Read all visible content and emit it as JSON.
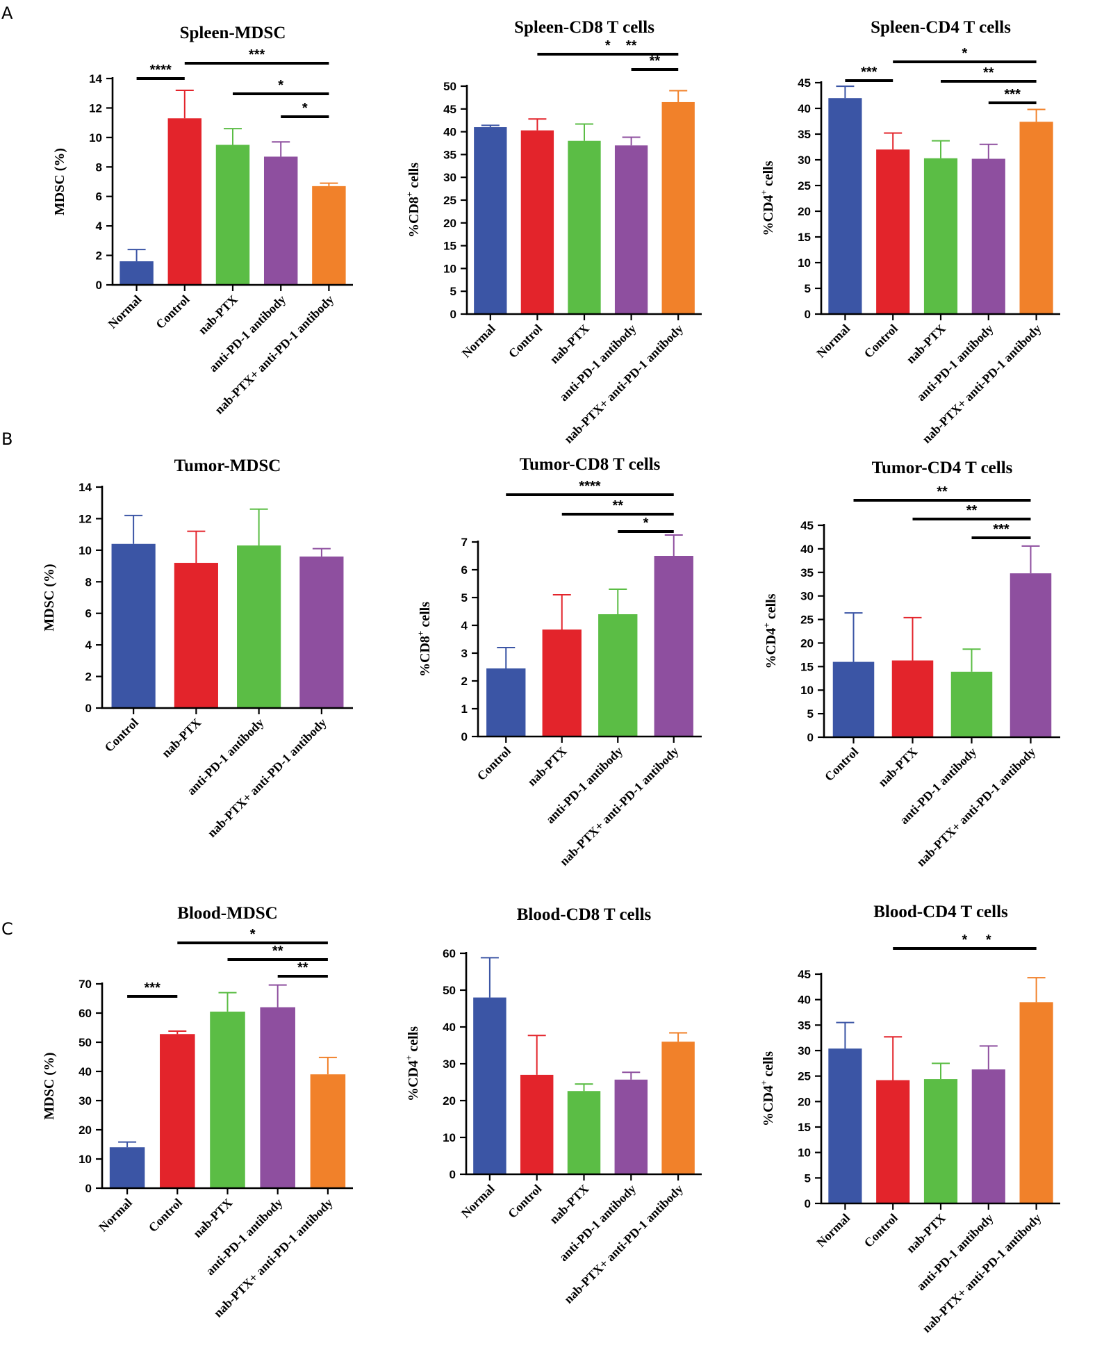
{
  "panels": [
    {
      "label": "A"
    },
    {
      "label": "B"
    },
    {
      "label": "C"
    }
  ],
  "colors": {
    "Normal": "#3b55a5",
    "Control": "#e3242b",
    "nab-PTX": "#5bbd45",
    "anti-PD-1 antibody": "#8e4f9f",
    "nab-PTX+ anti-PD-1 antibody": "#f1812a",
    "axis": "#000000"
  },
  "chart_data": [
    {
      "id": "spleen-mdsc",
      "type": "bar",
      "title": "Spleen-MDSC",
      "ylabel": "MDSC (%)",
      "categories": [
        "Normal",
        "Control",
        "nab-PTX",
        "anti-PD-1 antibody",
        "nab-PTX+ anti-PD-1 antibody"
      ],
      "color_keys": [
        "Normal",
        "Control",
        "nab-PTX",
        "anti-PD-1 antibody",
        "nab-PTX+ anti-PD-1 antibody"
      ],
      "values": [
        1.6,
        11.3,
        9.5,
        8.7,
        6.7
      ],
      "errors": [
        0.8,
        1.9,
        1.1,
        1.0,
        0.2
      ],
      "ylim": [
        0,
        14
      ],
      "yticks": [
        0,
        2,
        4,
        6,
        8,
        10,
        12,
        14
      ],
      "significance": [
        {
          "from": 0,
          "to": 1,
          "label": "****"
        },
        {
          "from": 1,
          "to": 4,
          "label": "***"
        },
        {
          "from": 2,
          "to": 4,
          "label": "*"
        },
        {
          "from": 3,
          "to": 4,
          "label": "*"
        }
      ]
    },
    {
      "id": "spleen-cd8",
      "type": "bar",
      "title": "Spleen-CD8 T cells",
      "ylabel": "%CD8",
      "ylabel_sup": "+",
      "ylabel_suffix": " cells",
      "categories": [
        "Normal",
        "Control",
        "nab-PTX",
        "anti-PD-1 antibody",
        "nab-PTX+ anti-PD-1 antibody"
      ],
      "color_keys": [
        "Normal",
        "Control",
        "nab-PTX",
        "anti-PD-1 antibody",
        "nab-PTX+ anti-PD-1 antibody"
      ],
      "values": [
        41.0,
        40.3,
        38.0,
        37.0,
        46.5
      ],
      "errors": [
        0.4,
        2.5,
        3.7,
        1.8,
        2.5
      ],
      "ylim": [
        0,
        50
      ],
      "yticks": [
        0,
        5,
        10,
        15,
        20,
        25,
        30,
        35,
        40,
        45,
        50
      ],
      "significance": [
        {
          "from": 1,
          "to": 4,
          "label": "*"
        },
        {
          "from": 2,
          "to": 4,
          "label": "**"
        },
        {
          "from": 3,
          "to": 4,
          "label": "**"
        }
      ]
    },
    {
      "id": "spleen-cd4",
      "type": "bar",
      "title": "Spleen-CD4 T cells",
      "ylabel": "%CD4",
      "ylabel_sup": "+",
      "ylabel_suffix": " cells",
      "categories": [
        "Normal",
        "Control",
        "nab-PTX",
        "anti-PD-1 antibody",
        "nab-PTX+ anti-PD-1 antibody"
      ],
      "color_keys": [
        "Normal",
        "Control",
        "nab-PTX",
        "anti-PD-1 antibody",
        "nab-PTX+ anti-PD-1 antibody"
      ],
      "values": [
        42.0,
        32.0,
        30.3,
        30.2,
        37.4
      ],
      "errors": [
        2.3,
        3.2,
        3.4,
        2.8,
        2.4
      ],
      "ylim": [
        0,
        45
      ],
      "yticks": [
        0,
        5,
        10,
        15,
        20,
        25,
        30,
        35,
        40,
        45
      ],
      "significance": [
        {
          "from": 0,
          "to": 1,
          "label": "***"
        },
        {
          "from": 1,
          "to": 4,
          "label": "*"
        },
        {
          "from": 2,
          "to": 4,
          "label": "**"
        },
        {
          "from": 3,
          "to": 4,
          "label": "***"
        }
      ]
    },
    {
      "id": "tumor-mdsc",
      "type": "bar",
      "title": "Tumor-MDSC",
      "ylabel": "MDSC (%)",
      "categories": [
        "Control",
        "nab-PTX",
        "anti-PD-1 antibody",
        "nab-PTX+ anti-PD-1 antibody"
      ],
      "color_keys": [
        "Normal",
        "Control",
        "nab-PTX",
        "anti-PD-1 antibody"
      ],
      "values": [
        10.4,
        9.2,
        10.3,
        9.6
      ],
      "errors": [
        1.8,
        2.0,
        2.3,
        0.5
      ],
      "ylim": [
        0,
        14
      ],
      "yticks": [
        0,
        2,
        4,
        6,
        8,
        10,
        12,
        14
      ],
      "significance": []
    },
    {
      "id": "tumor-cd8",
      "type": "bar",
      "title": "Tumor-CD8 T cells",
      "ylabel": "%CD8",
      "ylabel_sup": "+",
      "ylabel_suffix": " cells",
      "categories": [
        "Control",
        "nab-PTX",
        "anti-PD-1 antibody",
        "nab-PTX+ anti-PD-1 antibody"
      ],
      "color_keys": [
        "Normal",
        "Control",
        "nab-PTX",
        "anti-PD-1 antibody"
      ],
      "values": [
        2.45,
        3.85,
        4.4,
        6.5
      ],
      "errors": [
        0.75,
        1.25,
        0.9,
        0.75
      ],
      "ylim": [
        0,
        7
      ],
      "yticks": [
        0,
        1,
        2,
        3,
        4,
        5,
        6,
        7
      ],
      "significance": [
        {
          "from": 0,
          "to": 3,
          "label": "****"
        },
        {
          "from": 1,
          "to": 3,
          "label": "**"
        },
        {
          "from": 2,
          "to": 3,
          "label": "*"
        }
      ]
    },
    {
      "id": "tumor-cd4",
      "type": "bar",
      "title": "Tumor-CD4 T cells",
      "ylabel": "%CD4",
      "ylabel_sup": "+",
      "ylabel_suffix": " cells",
      "categories": [
        "Control",
        "nab-PTX",
        "anti-PD-1 antibody",
        "nab-PTX+ anti-PD-1 antibody"
      ],
      "color_keys": [
        "Normal",
        "Control",
        "nab-PTX",
        "anti-PD-1 antibody"
      ],
      "values": [
        16.0,
        16.3,
        13.9,
        34.8
      ],
      "errors": [
        10.4,
        9.1,
        4.8,
        5.8
      ],
      "ylim": [
        0,
        45
      ],
      "yticks": [
        0,
        5,
        10,
        15,
        20,
        25,
        30,
        35,
        40,
        45
      ],
      "significance": [
        {
          "from": 0,
          "to": 3,
          "label": "**"
        },
        {
          "from": 1,
          "to": 3,
          "label": "**"
        },
        {
          "from": 2,
          "to": 3,
          "label": "***"
        }
      ]
    },
    {
      "id": "blood-mdsc",
      "type": "bar",
      "title": "Blood-MDSC",
      "ylabel": "MDSC (%)",
      "categories": [
        "Normal",
        "Control",
        "nab-PTX",
        "anti-PD-1 antibody",
        "nab-PTX+ anti-PD-1 antibody"
      ],
      "color_keys": [
        "Normal",
        "Control",
        "nab-PTX",
        "anti-PD-1 antibody",
        "nab-PTX+ anti-PD-1 antibody"
      ],
      "values": [
        14.0,
        52.8,
        60.5,
        62.0,
        39.0
      ],
      "errors": [
        1.8,
        1.0,
        6.5,
        7.6,
        5.8
      ],
      "ylim": [
        0,
        70
      ],
      "yticks": [
        0,
        10,
        20,
        30,
        40,
        50,
        60,
        70
      ],
      "significance": [
        {
          "from": 0,
          "to": 1,
          "label": "***"
        },
        {
          "from": 1,
          "to": 4,
          "label": "*"
        },
        {
          "from": 2,
          "to": 4,
          "label": "**"
        },
        {
          "from": 3,
          "to": 4,
          "label": "**"
        }
      ]
    },
    {
      "id": "blood-cd8",
      "type": "bar",
      "title": "Blood-CD8 T cells",
      "ylabel": "%CD4",
      "ylabel_sup": "+",
      "ylabel_suffix": " cells",
      "categories": [
        "Normal",
        "Control",
        "nab-PTX",
        "anti-PD-1 antibody",
        "nab-PTX+ anti-PD-1 antibody"
      ],
      "color_keys": [
        "Normal",
        "Control",
        "nab-PTX",
        "anti-PD-1 antibody",
        "nab-PTX+ anti-PD-1 antibody"
      ],
      "values": [
        48.0,
        27.0,
        22.6,
        25.7,
        36.0
      ],
      "errors": [
        10.8,
        10.7,
        1.9,
        2.0,
        2.4
      ],
      "ylim": [
        0,
        60
      ],
      "yticks": [
        0,
        10,
        20,
        30,
        40,
        50,
        60
      ],
      "significance": []
    },
    {
      "id": "blood-cd4",
      "type": "bar",
      "title": "Blood-CD4 T cells",
      "ylabel": "%CD4",
      "ylabel_sup": "+",
      "ylabel_suffix": " cells",
      "categories": [
        "Normal",
        "Control",
        "nab-PTX",
        "anti-PD-1 antibody",
        "nab-PTX+ anti-PD-1 antibody"
      ],
      "color_keys": [
        "Normal",
        "Control",
        "nab-PTX",
        "anti-PD-1 antibody",
        "nab-PTX+ anti-PD-1 antibody"
      ],
      "values": [
        30.4,
        24.2,
        24.4,
        26.3,
        39.5
      ],
      "errors": [
        5.1,
        8.5,
        3.1,
        4.6,
        4.8
      ],
      "ylim": [
        0,
        45
      ],
      "yticks": [
        0,
        5,
        10,
        15,
        20,
        25,
        30,
        35,
        40,
        45
      ],
      "significance": [
        {
          "from": 1,
          "to": 4,
          "label": "*"
        },
        {
          "from": 2,
          "to": 4,
          "label": "*"
        }
      ]
    }
  ]
}
